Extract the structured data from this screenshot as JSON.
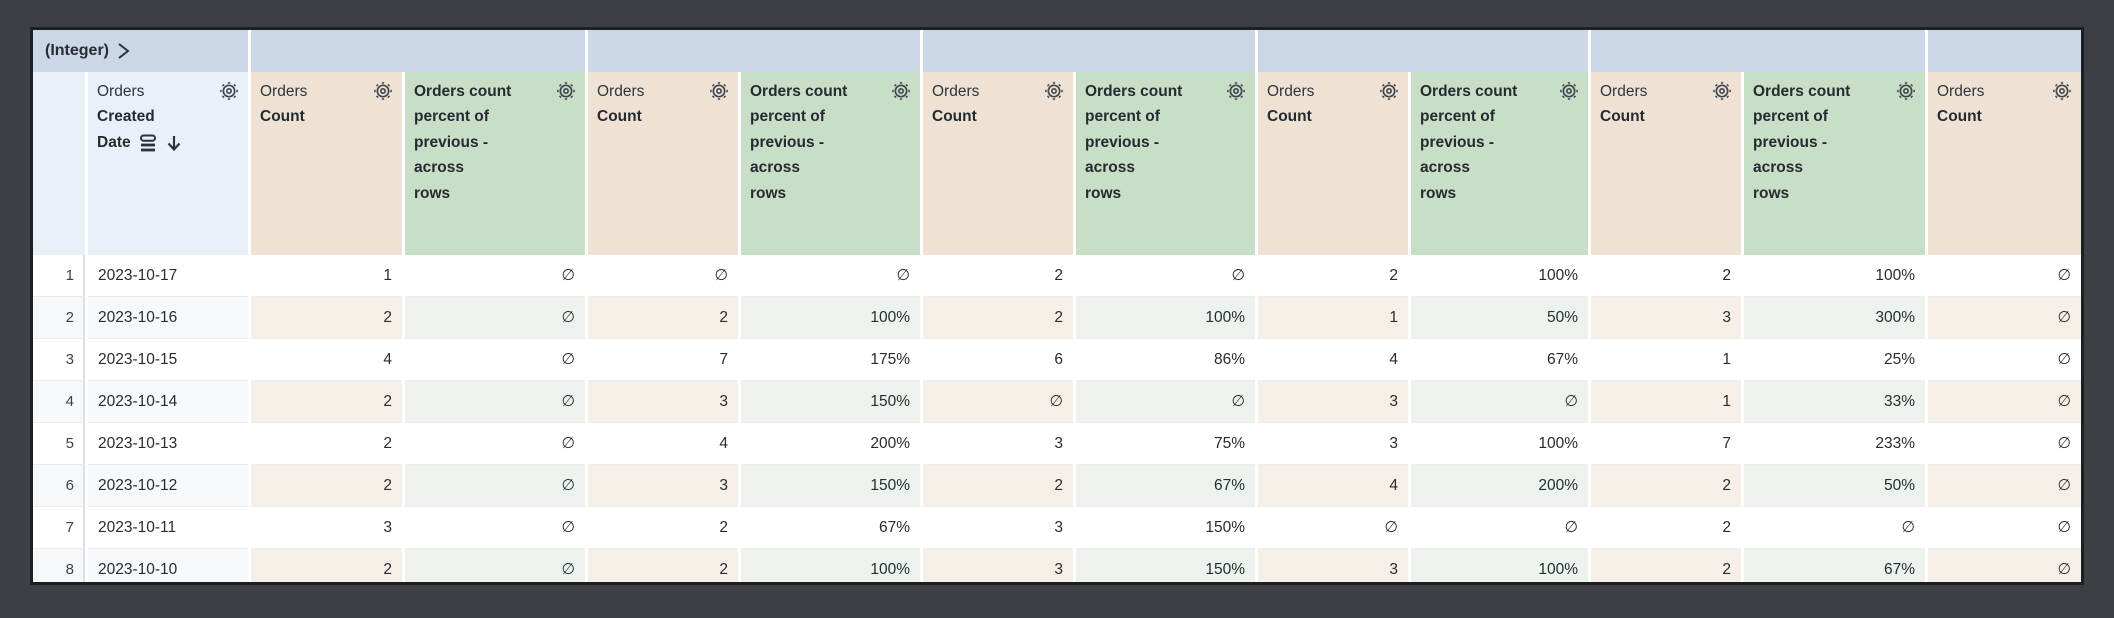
{
  "table": {
    "pivot_band": {
      "label": "(Integer)",
      "chevron_icon": "chevron-right-icon",
      "empty_group_cells": 6
    },
    "headers": {
      "dimension": {
        "view": "Orders",
        "field_line1": "Created",
        "field_line2": "Date",
        "sort_icon": "sort-descending-arrow",
        "granularity_icon": "date-granularity-icon",
        "gear_icon": "gear-icon"
      },
      "measure": {
        "view": "Orders",
        "field": "Count",
        "gear_icon": "gear-icon"
      },
      "calc": {
        "lines": [
          "Orders count",
          "percent of",
          "previous -",
          "across",
          "rows"
        ],
        "gear_icon": "gear-icon"
      }
    },
    "column_types": [
      "num",
      "date",
      "count",
      "pct",
      "count",
      "pct",
      "count",
      "pct",
      "count",
      "pct",
      "count",
      "pct",
      "count"
    ],
    "rows": [
      {
        "num": "1",
        "date": "2023-10-17",
        "cells": [
          "1",
          "∅",
          "∅",
          "∅",
          "2",
          "∅",
          "2",
          "100%",
          "2",
          "100%",
          "∅"
        ]
      },
      {
        "num": "2",
        "date": "2023-10-16",
        "cells": [
          "2",
          "∅",
          "2",
          "100%",
          "2",
          "100%",
          "1",
          "50%",
          "3",
          "300%",
          "∅"
        ]
      },
      {
        "num": "3",
        "date": "2023-10-15",
        "cells": [
          "4",
          "∅",
          "7",
          "175%",
          "6",
          "86%",
          "4",
          "67%",
          "1",
          "25%",
          "∅"
        ]
      },
      {
        "num": "4",
        "date": "2023-10-14",
        "cells": [
          "2",
          "∅",
          "3",
          "150%",
          "∅",
          "∅",
          "3",
          "∅",
          "1",
          "33%",
          "∅"
        ]
      },
      {
        "num": "5",
        "date": "2023-10-13",
        "cells": [
          "2",
          "∅",
          "4",
          "200%",
          "3",
          "75%",
          "3",
          "100%",
          "7",
          "233%",
          "∅"
        ]
      },
      {
        "num": "6",
        "date": "2023-10-12",
        "cells": [
          "2",
          "∅",
          "3",
          "150%",
          "2",
          "67%",
          "4",
          "200%",
          "2",
          "50%",
          "∅"
        ]
      },
      {
        "num": "7",
        "date": "2023-10-11",
        "cells": [
          "3",
          "∅",
          "2",
          "67%",
          "3",
          "150%",
          "∅",
          "∅",
          "2",
          "∅",
          "∅"
        ]
      },
      {
        "num": "8",
        "date": "2023-10-10",
        "cells": [
          "2",
          "∅",
          "2",
          "100%",
          "3",
          "150%",
          "3",
          "100%",
          "2",
          "67%",
          "∅"
        ]
      }
    ],
    "colors": {
      "page_background": "#3C4044",
      "pivot_band": "#CBD7E6",
      "dimension_header": "#EAF0F7",
      "count_header": "#EFE2D4",
      "percent_header": "#C9DEC6",
      "stripe_dim": "#F6F8FB",
      "stripe_count": "#F6EFE8",
      "stripe_percent": "#EDF3EC"
    }
  }
}
